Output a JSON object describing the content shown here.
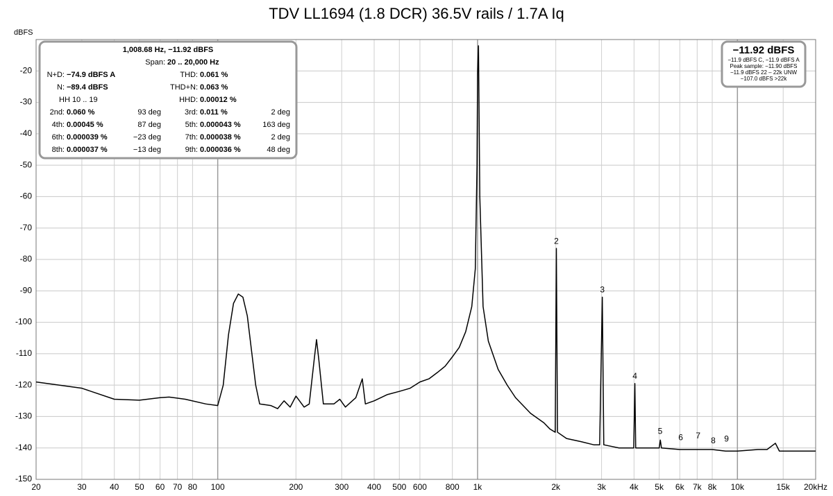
{
  "chart_data": {
    "type": "line",
    "title": "TDV LL1694 (1.8 DCR) 36.5V rails / 1.7A Iq",
    "y_axis_label": "dBFS",
    "xscale": "log",
    "grid": true,
    "xlim": [
      20,
      20000
    ],
    "ylim": [
      -150,
      -10
    ],
    "yticks": [
      -150,
      -140,
      -130,
      -120,
      -110,
      -100,
      -90,
      -80,
      -70,
      -60,
      -50,
      -40,
      -30,
      -20
    ],
    "xticks": [
      20,
      30,
      40,
      50,
      60,
      70,
      80,
      100,
      200,
      300,
      400,
      500,
      600,
      800,
      {
        "value": 1000,
        "label": "1k"
      },
      {
        "value": 2000,
        "label": "2k"
      },
      {
        "value": 3000,
        "label": "3k"
      },
      {
        "value": 4000,
        "label": "4k"
      },
      {
        "value": 5000,
        "label": "5k"
      },
      {
        "value": 6000,
        "label": "6k"
      },
      {
        "value": 7000,
        "label": "7k"
      },
      {
        "value": 8000,
        "label": "8k"
      },
      {
        "value": 10000,
        "label": "10k"
      },
      {
        "value": 15000,
        "label": "15k"
      },
      {
        "value": 20000,
        "label": "20kHz"
      }
    ],
    "series": [
      {
        "color": "#000000",
        "x": [
          20,
          30,
          40,
          50,
          60,
          65,
          75,
          90,
          100,
          105,
          110,
          115,
          120,
          125,
          130,
          140,
          145,
          160,
          170,
          180,
          190,
          200,
          215,
          225,
          235,
          240,
          245,
          255,
          280,
          295,
          310,
          340,
          360,
          370,
          400,
          450,
          500,
          550,
          600,
          650,
          700,
          750,
          800,
          850,
          900,
          950,
          980,
          995,
          1000,
          1008,
          1020,
          1050,
          1100,
          1200,
          1300,
          1400,
          1600,
          1800,
          1900,
          1990,
          2010,
          2030,
          2200,
          2500,
          2800,
          2950,
          3020,
          3060,
          3500,
          3990,
          4030,
          4060,
          4500,
          5000,
          5050,
          5100,
          6000,
          7000,
          8000,
          9000,
          10000,
          12000,
          13000,
          14000,
          14500,
          17000,
          20000
        ],
        "values": [
          -119,
          -121,
          -124.5,
          -124.8,
          -124,
          -123.8,
          -124.5,
          -126,
          -126.5,
          -120,
          -104,
          -94,
          -91,
          -92,
          -98,
          -120,
          -126,
          -126.5,
          -127.5,
          -125,
          -127,
          -123.5,
          -127,
          -126,
          -112,
          -105.5,
          -112,
          -126,
          -126,
          -124.5,
          -127,
          -124,
          -118,
          -126,
          -125,
          -123,
          -122,
          -121,
          -119,
          -118,
          -116,
          -114,
          -111,
          -108,
          -103,
          -95,
          -83,
          -50,
          -21,
          -12,
          -60,
          -95,
          -106,
          -115,
          -120,
          -124,
          -129,
          -132,
          -134,
          -135,
          -76.5,
          -135,
          -137,
          -138,
          -139,
          -139,
          -92,
          -139,
          -140,
          -140,
          -119.5,
          -140,
          -140,
          -140,
          -137.5,
          -140,
          -140.5,
          -140.5,
          -140.5,
          -141,
          -141,
          -140.5,
          -140.5,
          -138.5,
          -141,
          -141,
          -141
        ]
      }
    ],
    "annotations": [
      {
        "text": "2",
        "x": 2010,
        "y": -76.5
      },
      {
        "text": "3",
        "x": 3020,
        "y": -92
      },
      {
        "text": "4",
        "x": 4030,
        "y": -119.5
      },
      {
        "text": "5",
        "x": 5040,
        "y": -137
      },
      {
        "text": "6",
        "x": 6050,
        "y": -139
      },
      {
        "text": "7",
        "x": 7060,
        "y": -138.5
      },
      {
        "text": "8",
        "x": 8070,
        "y": -140
      },
      {
        "text": "9",
        "x": 9080,
        "y": -139.5
      }
    ]
  },
  "info_box": {
    "header": "1,008.68 Hz, −11.92 dBFS",
    "span_label": "Span:",
    "span_value": "20 .. 20,000 Hz",
    "rows": [
      {
        "left": {
          "label": "N+D:",
          "value": "−74.9 dBFS A"
        },
        "right": {
          "label": "THD:",
          "value": "0.061 %"
        }
      },
      {
        "left": {
          "label": "N:",
          "value": "−89.4 dBFS"
        },
        "right": {
          "label": "THD+N:",
          "value": "0.063 %"
        }
      },
      {
        "left": {
          "label": "HH 10 .. 19"
        },
        "right": {
          "label": "HHD:",
          "value": "0.00012 %"
        }
      },
      {
        "left": {
          "label": "2nd:",
          "value": "0.060 %",
          "phase": "93 deg"
        },
        "right": {
          "label": "3rd:",
          "value": "0.011 %",
          "phase": "2 deg"
        }
      },
      {
        "left": {
          "label": "4th:",
          "value": "0.00045 %",
          "phase": "87 deg"
        },
        "right": {
          "label": "5th:",
          "value": "0.000043 %",
          "phase": "163 deg"
        }
      },
      {
        "left": {
          "label": "6th:",
          "value": "0.000039 %",
          "phase": "−23 deg"
        },
        "right": {
          "label": "7th:",
          "value": "0.000038 %",
          "phase": "2 deg"
        }
      },
      {
        "left": {
          "label": "8th:",
          "value": "0.000037 %",
          "phase": "−13 deg"
        },
        "right": {
          "label": "9th:",
          "value": "0.000036 %",
          "phase": "48 deg"
        }
      }
    ]
  },
  "level_box": {
    "main": "−11.92 dBFS",
    "lines": [
      "−11.9 dBFS C, −11.9 dBFS A",
      "Peak sample: −11.90 dBFS",
      "−11.9 dBFS 22 – 22k UNW",
      "−107.0 dBFS >22k"
    ]
  }
}
